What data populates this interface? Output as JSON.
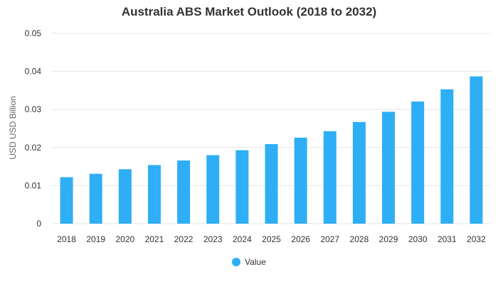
{
  "chart_data": {
    "type": "bar",
    "title": "Australia ABS Market Outlook (2018 to 2032)",
    "xlabel": "",
    "ylabel": "USD USD Billion",
    "ylim": [
      0,
      0.05
    ],
    "yticks": [
      "0",
      "0.01",
      "0.02",
      "0.03",
      "0.04",
      "0.05"
    ],
    "grid": true,
    "legend_position": "bottom",
    "categories": [
      "2018",
      "2019",
      "2020",
      "2021",
      "2022",
      "2023",
      "2024",
      "2025",
      "2026",
      "2027",
      "2028",
      "2029",
      "2030",
      "2031",
      "2032"
    ],
    "series": [
      {
        "name": "Value",
        "color": "#2eaef5",
        "values": [
          0.0122,
          0.0131,
          0.0143,
          0.0154,
          0.0166,
          0.018,
          0.0193,
          0.0209,
          0.0226,
          0.0243,
          0.0267,
          0.0294,
          0.0321,
          0.0353,
          0.0387
        ]
      }
    ]
  }
}
